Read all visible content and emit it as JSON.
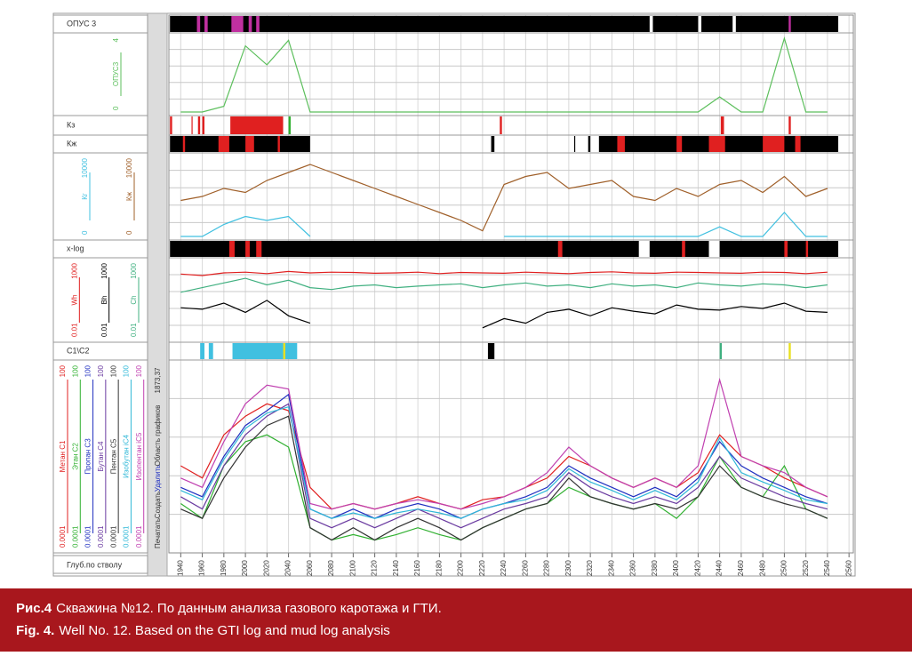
{
  "toolbar": {
    "buttons": [
      "Печатать",
      "Создать",
      "Удалить",
      "Область графиков"
    ],
    "depth": "1873,37"
  },
  "depth_axis": {
    "label": "Глуб.по стволу",
    "xlim": [
      1929,
      2564
    ],
    "xticks": [
      1940,
      1960,
      1980,
      2000,
      2020,
      2040,
      2060,
      2080,
      2100,
      2120,
      2140,
      2160,
      2180,
      2200,
      2220,
      2240,
      2260,
      2280,
      2300,
      2320,
      2340,
      2360,
      2380,
      2400,
      2420,
      2440,
      2460,
      2480,
      2500,
      2520,
      2540,
      2560
    ]
  },
  "chart_data": [
    {
      "type": "track",
      "title": "ОПУС 3",
      "intervals": [
        {
          "from": 1930,
          "to": 2375,
          "color": "#000"
        },
        {
          "from": 2378,
          "to": 2420,
          "color": "#000"
        },
        {
          "from": 2423,
          "to": 2452,
          "color": "#000"
        },
        {
          "from": 2455,
          "to": 2550,
          "color": "#000"
        },
        {
          "from": 1955,
          "to": 1958,
          "color": "#c030a0"
        },
        {
          "from": 1962,
          "to": 1965,
          "color": "#c030a0"
        },
        {
          "from": 1987,
          "to": 1998,
          "color": "#c030a0"
        },
        {
          "from": 2003,
          "to": 2006,
          "color": "#c030a0"
        },
        {
          "from": 2010,
          "to": 2013,
          "color": "#c030a0"
        },
        {
          "from": 2504,
          "to": 2506,
          "color": "#c030a0"
        }
      ]
    },
    {
      "type": "line",
      "ylim": [
        0,
        4
      ],
      "log": false,
      "x": [
        1940,
        1960,
        1980,
        2000,
        2020,
        2040,
        2060,
        2080,
        2100,
        2120,
        2140,
        2160,
        2180,
        2200,
        2220,
        2240,
        2260,
        2280,
        2300,
        2320,
        2340,
        2360,
        2380,
        2400,
        2420,
        2440,
        2460,
        2480,
        2500,
        2520,
        2540
      ],
      "series": [
        {
          "name": "ОПУС3",
          "color": "#5cbf5c",
          "values": [
            0,
            0,
            0.3,
            3.5,
            2.5,
            3.8,
            0,
            0,
            0,
            0,
            0,
            0,
            0,
            0,
            0,
            0,
            0,
            0,
            0,
            0,
            0,
            0,
            0,
            0,
            0,
            0.8,
            0,
            0,
            3.9,
            0,
            0
          ]
        }
      ]
    },
    {
      "type": "track",
      "title": "Кз",
      "intervals": [
        {
          "from": 1930,
          "to": 1932,
          "color": "#e02020"
        },
        {
          "from": 1950,
          "to": 1951,
          "color": "#e02020"
        },
        {
          "from": 1956,
          "to": 1958,
          "color": "#e02020"
        },
        {
          "from": 1960,
          "to": 1962,
          "color": "#e02020"
        },
        {
          "from": 1986,
          "to": 2035,
          "color": "#e02020"
        },
        {
          "from": 2040,
          "to": 2042,
          "color": "#30b030"
        },
        {
          "from": 2236,
          "to": 2238,
          "color": "#e02020"
        },
        {
          "from": 2441,
          "to": 2444,
          "color": "#e02020"
        },
        {
          "from": 2504,
          "to": 2506,
          "color": "#e02020"
        }
      ]
    },
    {
      "type": "track",
      "title": "Кж",
      "intervals": [
        {
          "from": 1930,
          "to": 2060,
          "color": "#000"
        },
        {
          "from": 2228,
          "to": 2231,
          "color": "#000"
        },
        {
          "from": 2305,
          "to": 2306,
          "color": "#000"
        },
        {
          "from": 2318,
          "to": 2320,
          "color": "#000"
        },
        {
          "from": 2328,
          "to": 2550,
          "color": "#000"
        },
        {
          "from": 1942,
          "to": 1944,
          "color": "#e02020"
        },
        {
          "from": 1975,
          "to": 1985,
          "color": "#e02020"
        },
        {
          "from": 2000,
          "to": 2008,
          "color": "#e02020"
        },
        {
          "from": 2030,
          "to": 2032,
          "color": "#e02020"
        },
        {
          "from": 2345,
          "to": 2352,
          "color": "#e02020"
        },
        {
          "from": 2400,
          "to": 2405,
          "color": "#e02020"
        },
        {
          "from": 2430,
          "to": 2445,
          "color": "#e02020"
        },
        {
          "from": 2480,
          "to": 2500,
          "color": "#e02020"
        },
        {
          "from": 2510,
          "to": 2515,
          "color": "#e02020"
        }
      ]
    },
    {
      "type": "line",
      "ylim": [
        0,
        10000
      ],
      "log": false,
      "x": [
        1940,
        1960,
        1980,
        2000,
        2020,
        2040,
        2060,
        2080,
        2100,
        2120,
        2140,
        2160,
        2180,
        2200,
        2220,
        2240,
        2260,
        2280,
        2300,
        2320,
        2340,
        2360,
        2380,
        2400,
        2420,
        2440,
        2460,
        2480,
        2500,
        2520,
        2540
      ],
      "series": [
        {
          "name": "Кг",
          "color": "#40c0e0",
          "values": [
            0,
            0,
            1500,
            2500,
            2000,
            2500,
            0,
            null,
            null,
            null,
            null,
            null,
            null,
            null,
            null,
            0,
            0,
            0,
            0,
            0,
            0,
            0,
            0,
            0,
            0,
            1200,
            0,
            0,
            3000,
            0,
            0
          ]
        },
        {
          "name": "Кж",
          "color": "#a0602a",
          "values": [
            4500,
            5000,
            6000,
            5500,
            7000,
            8000,
            9000,
            8000,
            7000,
            6000,
            5000,
            4000,
            3000,
            2000,
            700,
            6500,
            7500,
            8000,
            6000,
            6500,
            7000,
            5000,
            4500,
            6000,
            5000,
            6500,
            7000,
            5500,
            7500,
            5000,
            6000
          ]
        }
      ]
    },
    {
      "type": "track",
      "title": "x-log",
      "intervals": [
        {
          "from": 1930,
          "to": 2365,
          "color": "#000"
        },
        {
          "from": 2375,
          "to": 2430,
          "color": "#000"
        },
        {
          "from": 2440,
          "to": 2550,
          "color": "#000"
        },
        {
          "from": 1985,
          "to": 1990,
          "color": "#e02020"
        },
        {
          "from": 2000,
          "to": 2004,
          "color": "#e02020"
        },
        {
          "from": 2010,
          "to": 2015,
          "color": "#e02020"
        },
        {
          "from": 2290,
          "to": 2294,
          "color": "#e02020"
        },
        {
          "from": 2405,
          "to": 2408,
          "color": "#e02020"
        },
        {
          "from": 2500,
          "to": 2503,
          "color": "#e02020"
        },
        {
          "from": 2520,
          "to": 2522,
          "color": "#e02020"
        }
      ]
    },
    {
      "type": "line",
      "ylim": [
        0.01,
        1000
      ],
      "log": true,
      "x": [
        1940,
        1960,
        1980,
        2000,
        2020,
        2040,
        2060,
        2080,
        2100,
        2120,
        2140,
        2160,
        2180,
        2200,
        2220,
        2240,
        2260,
        2280,
        2300,
        2320,
        2340,
        2360,
        2380,
        2400,
        2420,
        2440,
        2460,
        2480,
        2500,
        2520,
        2540
      ],
      "series": [
        {
          "name": "Wh",
          "color": "#e02020",
          "values": [
            150,
            120,
            180,
            200,
            160,
            220,
            180,
            200,
            190,
            170,
            180,
            200,
            160,
            190,
            180,
            170,
            200,
            180,
            160,
            190,
            210,
            180,
            170,
            200,
            190,
            180,
            170,
            200,
            190,
            160,
            200
          ]
        },
        {
          "name": "Bh",
          "color": "#000000",
          "values": [
            1,
            0.8,
            2,
            0.5,
            3,
            0.3,
            0.1,
            null,
            null,
            null,
            null,
            null,
            null,
            null,
            0.05,
            0.2,
            0.1,
            0.5,
            0.8,
            0.3,
            1,
            0.6,
            0.4,
            1.5,
            0.8,
            0.7,
            1.2,
            0.9,
            2,
            0.6,
            0.5
          ]
        },
        {
          "name": "Ch",
          "color": "#40b080",
          "values": [
            10,
            20,
            40,
            80,
            30,
            60,
            20,
            15,
            25,
            30,
            20,
            25,
            30,
            35,
            20,
            30,
            40,
            25,
            30,
            20,
            35,
            25,
            30,
            20,
            40,
            30,
            25,
            35,
            30,
            20,
            30
          ]
        }
      ]
    },
    {
      "type": "track",
      "title": "C1\\C2",
      "intervals": [
        {
          "from": 1958,
          "to": 1962,
          "color": "#40c0e0"
        },
        {
          "from": 1966,
          "to": 1970,
          "color": "#40c0e0"
        },
        {
          "from": 1988,
          "to": 2048,
          "color": "#40c0e0"
        },
        {
          "from": 2035,
          "to": 2037,
          "color": "#e8e020"
        },
        {
          "from": 2225,
          "to": 2231,
          "color": "#000"
        },
        {
          "from": 2440,
          "to": 2442,
          "color": "#40b080"
        },
        {
          "from": 2504,
          "to": 2506,
          "color": "#e8e020"
        }
      ]
    },
    {
      "type": "line",
      "ylim": [
        0.0001,
        100
      ],
      "log": true,
      "x": [
        1940,
        1960,
        1980,
        2000,
        2020,
        2040,
        2060,
        2080,
        2100,
        2120,
        2140,
        2160,
        2180,
        2200,
        2220,
        2240,
        2260,
        2280,
        2300,
        2320,
        2340,
        2360,
        2380,
        2400,
        2420,
        2440,
        2460,
        2480,
        2500,
        2520,
        2540
      ],
      "series": [
        {
          "name": "Метан C1",
          "color": "#e02020",
          "values": [
            0.05,
            0.02,
            0.5,
            2,
            5,
            3,
            0.01,
            0.002,
            0.003,
            0.002,
            0.003,
            0.005,
            0.003,
            0.002,
            0.004,
            0.005,
            0.01,
            0.02,
            0.1,
            0.05,
            0.02,
            0.01,
            0.02,
            0.01,
            0.03,
            0.5,
            0.1,
            0.05,
            0.02,
            0.01,
            0.005
          ]
        },
        {
          "name": "Этан C2",
          "color": "#30b030",
          "values": [
            0.003,
            0.001,
            0.05,
            0.3,
            0.5,
            0.2,
            0.0005,
            0.0002,
            0.0003,
            0.0002,
            0.0003,
            0.0005,
            0.0003,
            0.0002,
            0.0005,
            0.001,
            0.002,
            0.003,
            0.01,
            0.005,
            0.003,
            0.002,
            0.003,
            0.001,
            0.005,
            0.1,
            0.01,
            0.005,
            0.05,
            0.002,
            0.001
          ]
        },
        {
          "name": "Пропан C3",
          "color": "#2030c0",
          "values": [
            0.01,
            0.005,
            0.1,
            1,
            3,
            10,
            0.002,
            0.001,
            0.002,
            0.001,
            0.002,
            0.003,
            0.002,
            0.001,
            0.002,
            0.003,
            0.005,
            0.01,
            0.05,
            0.02,
            0.01,
            0.005,
            0.01,
            0.005,
            0.02,
            0.3,
            0.05,
            0.02,
            0.01,
            0.005,
            0.003
          ]
        },
        {
          "name": "Бутан C4",
          "color": "#6a3aa0",
          "values": [
            0.005,
            0.002,
            0.05,
            0.5,
            2,
            5,
            0.001,
            0.0005,
            0.001,
            0.0005,
            0.001,
            0.002,
            0.001,
            0.0005,
            0.001,
            0.002,
            0.003,
            0.005,
            0.03,
            0.01,
            0.005,
            0.003,
            0.005,
            0.003,
            0.01,
            0.1,
            0.02,
            0.01,
            0.005,
            0.003,
            0.002
          ]
        },
        {
          "name": "Пентан C5",
          "color": "#333333",
          "values": [
            0.002,
            0.001,
            0.02,
            0.2,
            1,
            2,
            0.0005,
            0.0002,
            0.0005,
            0.0002,
            0.0005,
            0.001,
            0.0005,
            0.0002,
            0.0005,
            0.001,
            0.002,
            0.003,
            0.02,
            0.005,
            0.003,
            0.002,
            0.003,
            0.002,
            0.005,
            0.05,
            0.01,
            0.005,
            0.003,
            0.002,
            0.001
          ]
        },
        {
          "name": "Изобутан iC4",
          "color": "#30b8d8",
          "values": [
            0.008,
            0.004,
            0.08,
            0.8,
            2.5,
            4,
            0.002,
            0.001,
            0.0015,
            0.001,
            0.0015,
            0.002,
            0.0015,
            0.001,
            0.002,
            0.003,
            0.004,
            0.008,
            0.04,
            0.015,
            0.008,
            0.004,
            0.008,
            0.004,
            0.015,
            0.4,
            0.03,
            0.015,
            0.008,
            0.004,
            0.003
          ]
        },
        {
          "name": "Изопентан iC5",
          "color": "#c040b0",
          "values": [
            0.02,
            0.01,
            0.3,
            5,
            20,
            15,
            0.003,
            0.002,
            0.003,
            0.002,
            0.003,
            0.004,
            0.003,
            0.002,
            0.003,
            0.005,
            0.01,
            0.03,
            0.2,
            0.05,
            0.02,
            0.01,
            0.02,
            0.01,
            0.05,
            30,
            0.1,
            0.05,
            0.03,
            0.01,
            0.005
          ]
        }
      ]
    }
  ],
  "caption": {
    "ru_label": "Рис.4",
    "ru_text": "Скважина №12. По данным анализа газового каротажа и ГТИ.",
    "en_label": "Fig. 4.",
    "en_text": "Well No. 12. Based on the GTI log and mud log analysis"
  }
}
